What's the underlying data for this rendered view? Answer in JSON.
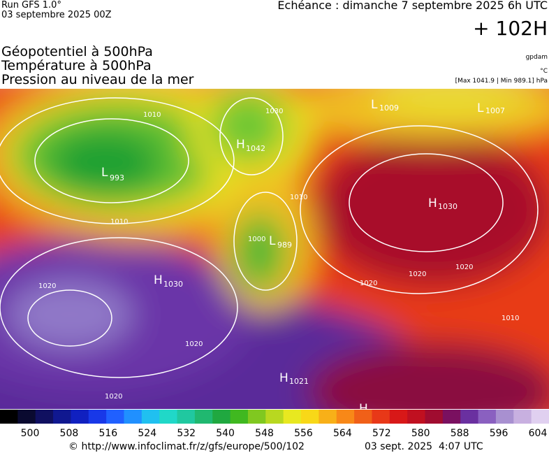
{
  "header": {
    "run": "Run GFS 1.0°",
    "date": "03 septembre 2025 00Z",
    "forecast": "Echéance : dimanche 7 septembre 2025 6h UTC",
    "lead": "+ 102H"
  },
  "legend": {
    "fields": [
      "Géopotentiel à 500hPa",
      "Température à 500hPa",
      "Pression au niveau de la mer"
    ],
    "units": [
      "gpdam",
      "°C"
    ],
    "pressure_range": "[Max 1041.9 | Min 989.1] hPa"
  },
  "map": {
    "centers": [
      {
        "symbol": "H",
        "value": 1042
      },
      {
        "symbol": "L",
        "value": 993
      },
      {
        "symbol": "L",
        "value": 1009
      },
      {
        "symbol": "L",
        "value": 1007
      },
      {
        "symbol": "L",
        "value": 989
      },
      {
        "symbol": "H",
        "value": 1030
      },
      {
        "symbol": "H",
        "value": 1030
      },
      {
        "symbol": "H",
        "value": 1021
      },
      {
        "symbol": "H"
      }
    ],
    "isobar_labels": [
      1010,
      1010,
      1030,
      1010,
      1000,
      1020,
      1020,
      1020,
      1020,
      1020,
      1010,
      1020
    ]
  },
  "colorbar": {
    "labels": [
      500,
      508,
      516,
      524,
      532,
      540,
      548,
      556,
      564,
      572,
      580,
      588,
      596,
      604
    ]
  },
  "footer": {
    "url": "© http://www.infoclimat.fr/z/gfs/europe/500/102",
    "timestamp": "03 sept. 2025  4:07 UTC"
  }
}
